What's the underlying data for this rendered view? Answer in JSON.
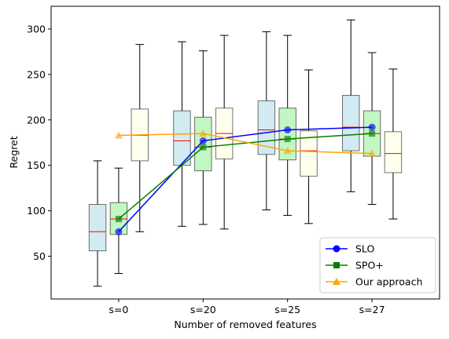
{
  "chart_data": {
    "type": "box",
    "title": "",
    "xlabel": "Number of removed features",
    "ylabel": "Regret",
    "categories": [
      "s=0",
      "s=20",
      "s=25",
      "s=27"
    ],
    "ylim": [
      3,
      325
    ],
    "yticks": [
      50,
      100,
      150,
      200,
      250,
      300
    ],
    "grid": false,
    "legend_position": "lower right",
    "series": [
      {
        "name": "SLO",
        "color": "#0000ff",
        "box_fill": "#add8e6",
        "marker": "circle",
        "line_values": [
          77,
          177,
          189,
          192
        ],
        "boxes": [
          {
            "whislo": 17,
            "q1": 56,
            "med": 77,
            "q3": 107,
            "whishi": 155
          },
          {
            "whislo": 83,
            "q1": 150,
            "med": 177,
            "q3": 210,
            "whishi": 286
          },
          {
            "whislo": 101,
            "q1": 162,
            "med": 189,
            "q3": 221,
            "whishi": 297
          },
          {
            "whislo": 121,
            "q1": 166,
            "med": 192,
            "q3": 227,
            "whishi": 310
          }
        ]
      },
      {
        "name": "SPO+",
        "color": "#008000",
        "box_fill": "#90ee90",
        "marker": "square",
        "line_values": [
          91,
          170,
          179,
          185
        ],
        "boxes": [
          {
            "whislo": 31,
            "q1": 74,
            "med": 91,
            "q3": 109,
            "whishi": 147
          },
          {
            "whislo": 85,
            "q1": 144,
            "med": 170,
            "q3": 203,
            "whishi": 276
          },
          {
            "whislo": 95,
            "q1": 156,
            "med": 179,
            "q3": 213,
            "whishi": 293
          },
          {
            "whislo": 107,
            "q1": 160,
            "med": 185,
            "q3": 210,
            "whishi": 274
          }
        ]
      },
      {
        "name": "Our approach",
        "color": "#ffa500",
        "box_fill": "#ffffe0",
        "marker": "triangle",
        "line_values": [
          183,
          185,
          166,
          163
        ],
        "boxes": [
          {
            "whislo": 77,
            "q1": 155,
            "med": 183,
            "q3": 212,
            "whishi": 283
          },
          {
            "whislo": 80,
            "q1": 157,
            "med": 185,
            "q3": 213,
            "whishi": 293
          },
          {
            "whislo": 86,
            "q1": 138,
            "med": 166,
            "q3": 188,
            "whishi": 255
          },
          {
            "whislo": 91,
            "q1": 142,
            "med": 163,
            "q3": 187,
            "whishi": 256
          }
        ]
      }
    ]
  }
}
